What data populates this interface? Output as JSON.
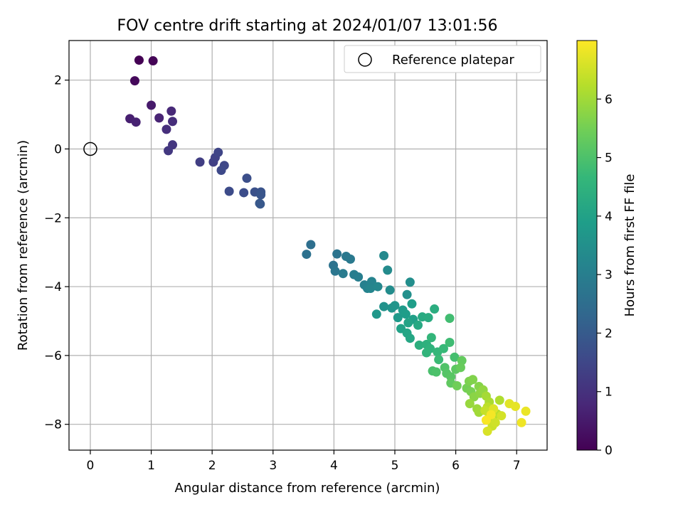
{
  "chart_data": {
    "type": "scatter",
    "title": "FOV centre drift starting at 2024/01/07 13:01:56",
    "xlabel": "Angular distance from reference (arcmin)",
    "ylabel": "Rotation from reference (arcmin)",
    "xlim": [
      -0.35,
      7.5
    ],
    "ylim": [
      -8.75,
      3.15
    ],
    "xticks": [
      0,
      1,
      2,
      3,
      4,
      5,
      6,
      7
    ],
    "yticks": [
      -8,
      -6,
      -4,
      -2,
      0,
      2
    ],
    "grid": true,
    "colormap": "viridis",
    "colorbar": {
      "label": "Hours from first FF file",
      "range": [
        0,
        7
      ],
      "ticks": [
        0,
        1,
        2,
        3,
        4,
        5,
        6
      ]
    },
    "legend": {
      "position": "upper-right",
      "entries": [
        {
          "label": "Reference platepar",
          "marker": "open-circle"
        }
      ]
    },
    "reference_point": {
      "x": 0,
      "y": 0
    },
    "series": [
      {
        "points": [
          [
            0.8,
            2.58,
            0.0
          ],
          [
            1.03,
            2.56,
            0.05
          ],
          [
            0.73,
            1.98,
            0.15
          ],
          [
            1.0,
            1.27,
            0.5
          ],
          [
            0.65,
            0.88,
            0.6
          ],
          [
            0.75,
            0.78,
            0.65
          ],
          [
            1.13,
            0.9,
            0.7
          ],
          [
            1.33,
            1.1,
            0.8
          ],
          [
            1.35,
            0.8,
            0.9
          ],
          [
            1.25,
            0.57,
            0.95
          ],
          [
            1.35,
            0.12,
            1.1
          ],
          [
            1.28,
            -0.05,
            1.15
          ],
          [
            1.8,
            -0.38,
            1.3
          ],
          [
            2.02,
            -0.38,
            1.35
          ],
          [
            2.05,
            -0.25,
            1.4
          ],
          [
            2.1,
            -0.1,
            1.45
          ],
          [
            2.2,
            -0.48,
            1.5
          ],
          [
            2.15,
            -0.62,
            1.55
          ],
          [
            2.28,
            -1.23,
            1.6
          ],
          [
            2.52,
            -1.27,
            1.65
          ],
          [
            2.57,
            -0.85,
            1.7
          ],
          [
            2.7,
            -1.25,
            1.75
          ],
          [
            2.8,
            -1.25,
            1.8
          ],
          [
            2.8,
            -1.33,
            1.85
          ],
          [
            2.78,
            -1.58,
            1.9
          ],
          [
            2.79,
            -1.6,
            1.92
          ],
          [
            3.62,
            -2.78,
            2.55
          ],
          [
            3.55,
            -3.06,
            2.6
          ],
          [
            3.99,
            -3.38,
            2.65
          ],
          [
            4.05,
            -3.05,
            2.7
          ],
          [
            4.02,
            -3.55,
            2.75
          ],
          [
            4.2,
            -3.12,
            2.8
          ],
          [
            4.27,
            -3.2,
            2.85
          ],
          [
            4.15,
            -3.62,
            2.9
          ],
          [
            4.33,
            -3.65,
            2.95
          ],
          [
            4.4,
            -3.72,
            3.0
          ],
          [
            4.5,
            -3.95,
            3.05
          ],
          [
            4.55,
            -4.05,
            3.1
          ],
          [
            4.62,
            -3.85,
            3.15
          ],
          [
            4.6,
            -4.05,
            3.2
          ],
          [
            4.72,
            -4.0,
            3.25
          ],
          [
            4.82,
            -3.1,
            3.3
          ],
          [
            4.88,
            -3.52,
            3.35
          ],
          [
            4.92,
            -4.1,
            3.4
          ],
          [
            5.25,
            -3.87,
            3.45
          ],
          [
            5.2,
            -4.23,
            3.5
          ],
          [
            4.82,
            -4.58,
            3.55
          ],
          [
            4.95,
            -4.62,
            3.6
          ],
          [
            5.0,
            -4.55,
            3.65
          ],
          [
            4.7,
            -4.8,
            3.7
          ],
          [
            5.05,
            -4.9,
            3.75
          ],
          [
            5.13,
            -4.68,
            3.8
          ],
          [
            5.18,
            -4.8,
            3.85
          ],
          [
            5.28,
            -4.5,
            3.9
          ],
          [
            5.3,
            -4.95,
            3.95
          ],
          [
            5.1,
            -5.22,
            4.0
          ],
          [
            5.22,
            -5.05,
            4.05
          ],
          [
            5.2,
            -5.35,
            4.1
          ],
          [
            5.25,
            -5.5,
            4.15
          ],
          [
            5.38,
            -5.12,
            4.2
          ],
          [
            5.45,
            -4.88,
            4.25
          ],
          [
            5.55,
            -4.9,
            4.3
          ],
          [
            5.65,
            -4.65,
            4.35
          ],
          [
            5.4,
            -5.7,
            4.4
          ],
          [
            5.52,
            -5.68,
            4.45
          ],
          [
            5.58,
            -5.8,
            4.5
          ],
          [
            5.52,
            -5.92,
            4.55
          ],
          [
            5.6,
            -5.48,
            4.6
          ],
          [
            5.7,
            -5.9,
            4.65
          ],
          [
            5.8,
            -5.8,
            4.7
          ],
          [
            5.72,
            -6.12,
            4.75
          ],
          [
            5.9,
            -5.62,
            4.8
          ],
          [
            5.9,
            -4.92,
            4.85
          ],
          [
            5.98,
            -6.05,
            4.9
          ],
          [
            5.62,
            -6.45,
            4.95
          ],
          [
            5.68,
            -6.48,
            5.0
          ],
          [
            5.82,
            -6.35,
            5.05
          ],
          [
            5.85,
            -6.52,
            5.1
          ],
          [
            5.92,
            -6.62,
            5.15
          ],
          [
            6.0,
            -6.4,
            5.2
          ],
          [
            5.92,
            -6.8,
            5.25
          ],
          [
            6.1,
            -6.15,
            5.3
          ],
          [
            6.08,
            -6.35,
            5.35
          ],
          [
            6.02,
            -6.88,
            5.45
          ],
          [
            6.18,
            -6.95,
            5.5
          ],
          [
            6.25,
            -7.05,
            5.55
          ],
          [
            6.22,
            -6.75,
            5.6
          ],
          [
            6.28,
            -6.7,
            5.65
          ],
          [
            6.38,
            -6.9,
            5.7
          ],
          [
            6.3,
            -7.2,
            5.75
          ],
          [
            6.4,
            -7.1,
            5.8
          ],
          [
            6.45,
            -7.0,
            5.85
          ],
          [
            6.23,
            -7.4,
            5.9
          ],
          [
            6.35,
            -7.55,
            5.95
          ],
          [
            6.38,
            -7.65,
            6.0
          ],
          [
            6.5,
            -7.18,
            6.05
          ],
          [
            6.55,
            -7.35,
            6.1
          ],
          [
            6.72,
            -7.3,
            6.15
          ],
          [
            6.6,
            -7.6,
            6.2
          ],
          [
            6.68,
            -7.7,
            6.25
          ],
          [
            6.52,
            -7.5,
            6.3
          ],
          [
            6.55,
            -7.8,
            6.35
          ],
          [
            6.48,
            -7.6,
            6.4
          ],
          [
            6.6,
            -8.05,
            6.45
          ],
          [
            6.65,
            -7.95,
            6.5
          ],
          [
            6.75,
            -7.75,
            6.55
          ],
          [
            6.52,
            -8.2,
            6.6
          ],
          [
            6.62,
            -7.55,
            6.65
          ],
          [
            6.88,
            -7.4,
            6.7
          ],
          [
            6.98,
            -7.48,
            6.75
          ],
          [
            7.15,
            -7.62,
            6.8
          ],
          [
            7.08,
            -7.95,
            6.85
          ],
          [
            6.58,
            -7.72,
            6.9
          ],
          [
            6.5,
            -7.88,
            6.95
          ]
        ]
      }
    ]
  }
}
